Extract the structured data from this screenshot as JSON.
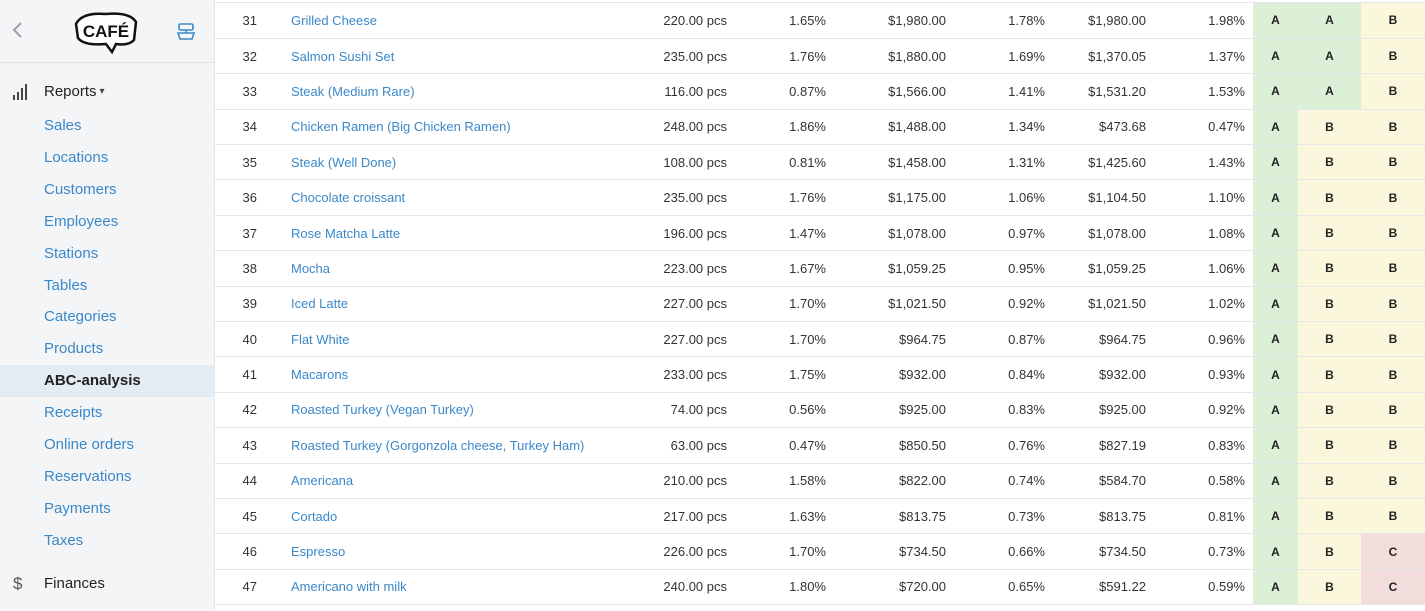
{
  "sidebar": {
    "back_icon": "chevron-left-icon",
    "logo_text": "CAFÉ",
    "pos_icon": "cash-register-icon",
    "reports_label": "Reports",
    "items": [
      "Sales",
      "Locations",
      "Customers",
      "Employees",
      "Stations",
      "Tables",
      "Categories",
      "Products",
      "ABC-analysis",
      "Receipts",
      "Online orders",
      "Reservations",
      "Payments",
      "Taxes"
    ],
    "active_item": "ABC-analysis",
    "finances_label": "Finances"
  },
  "colors": {
    "class_A": "#dcefd7",
    "class_B": "#fbf7dc",
    "class_C": "#f3dcdc",
    "link": "#3b88c9"
  },
  "rows": [
    {
      "num": "31",
      "name": "Grilled Cheese",
      "qty": "220.00 pcs",
      "qty_pct": "1.65%",
      "revenue": "$1,980.00",
      "revenue_pct": "1.78%",
      "profit": "$1,980.00",
      "profit_pct": "1.98%",
      "abc_qty": "A",
      "abc_revenue": "A",
      "abc_profit": "B"
    },
    {
      "num": "32",
      "name": "Salmon Sushi Set",
      "qty": "235.00 pcs",
      "qty_pct": "1.76%",
      "revenue": "$1,880.00",
      "revenue_pct": "1.69%",
      "profit": "$1,370.05",
      "profit_pct": "1.37%",
      "abc_qty": "A",
      "abc_revenue": "A",
      "abc_profit": "B"
    },
    {
      "num": "33",
      "name": "Steak (Medium Rare)",
      "qty": "116.00 pcs",
      "qty_pct": "0.87%",
      "revenue": "$1,566.00",
      "revenue_pct": "1.41%",
      "profit": "$1,531.20",
      "profit_pct": "1.53%",
      "abc_qty": "A",
      "abc_revenue": "A",
      "abc_profit": "B"
    },
    {
      "num": "34",
      "name": "Chicken Ramen (Big Chicken Ramen)",
      "qty": "248.00 pcs",
      "qty_pct": "1.86%",
      "revenue": "$1,488.00",
      "revenue_pct": "1.34%",
      "profit": "$473.68",
      "profit_pct": "0.47%",
      "abc_qty": "A",
      "abc_revenue": "B",
      "abc_profit": "B"
    },
    {
      "num": "35",
      "name": "Steak (Well Done)",
      "qty": "108.00 pcs",
      "qty_pct": "0.81%",
      "revenue": "$1,458.00",
      "revenue_pct": "1.31%",
      "profit": "$1,425.60",
      "profit_pct": "1.43%",
      "abc_qty": "A",
      "abc_revenue": "B",
      "abc_profit": "B"
    },
    {
      "num": "36",
      "name": "Chocolate croissant",
      "qty": "235.00 pcs",
      "qty_pct": "1.76%",
      "revenue": "$1,175.00",
      "revenue_pct": "1.06%",
      "profit": "$1,104.50",
      "profit_pct": "1.10%",
      "abc_qty": "A",
      "abc_revenue": "B",
      "abc_profit": "B"
    },
    {
      "num": "37",
      "name": "Rose Matcha Latte",
      "qty": "196.00 pcs",
      "qty_pct": "1.47%",
      "revenue": "$1,078.00",
      "revenue_pct": "0.97%",
      "profit": "$1,078.00",
      "profit_pct": "1.08%",
      "abc_qty": "A",
      "abc_revenue": "B",
      "abc_profit": "B"
    },
    {
      "num": "38",
      "name": "Mocha",
      "qty": "223.00 pcs",
      "qty_pct": "1.67%",
      "revenue": "$1,059.25",
      "revenue_pct": "0.95%",
      "profit": "$1,059.25",
      "profit_pct": "1.06%",
      "abc_qty": "A",
      "abc_revenue": "B",
      "abc_profit": "B"
    },
    {
      "num": "39",
      "name": "Iced Latte",
      "qty": "227.00 pcs",
      "qty_pct": "1.70%",
      "revenue": "$1,021.50",
      "revenue_pct": "0.92%",
      "profit": "$1,021.50",
      "profit_pct": "1.02%",
      "abc_qty": "A",
      "abc_revenue": "B",
      "abc_profit": "B"
    },
    {
      "num": "40",
      "name": "Flat White",
      "qty": "227.00 pcs",
      "qty_pct": "1.70%",
      "revenue": "$964.75",
      "revenue_pct": "0.87%",
      "profit": "$964.75",
      "profit_pct": "0.96%",
      "abc_qty": "A",
      "abc_revenue": "B",
      "abc_profit": "B"
    },
    {
      "num": "41",
      "name": "Macarons",
      "qty": "233.00 pcs",
      "qty_pct": "1.75%",
      "revenue": "$932.00",
      "revenue_pct": "0.84%",
      "profit": "$932.00",
      "profit_pct": "0.93%",
      "abc_qty": "A",
      "abc_revenue": "B",
      "abc_profit": "B"
    },
    {
      "num": "42",
      "name": "Roasted Turkey (Vegan Turkey)",
      "qty": "74.00 pcs",
      "qty_pct": "0.56%",
      "revenue": "$925.00",
      "revenue_pct": "0.83%",
      "profit": "$925.00",
      "profit_pct": "0.92%",
      "abc_qty": "A",
      "abc_revenue": "B",
      "abc_profit": "B"
    },
    {
      "num": "43",
      "name": "Roasted Turkey (Gorgonzola cheese, Turkey Ham)",
      "qty": "63.00 pcs",
      "qty_pct": "0.47%",
      "revenue": "$850.50",
      "revenue_pct": "0.76%",
      "profit": "$827.19",
      "profit_pct": "0.83%",
      "abc_qty": "A",
      "abc_revenue": "B",
      "abc_profit": "B"
    },
    {
      "num": "44",
      "name": "Americana",
      "qty": "210.00 pcs",
      "qty_pct": "1.58%",
      "revenue": "$822.00",
      "revenue_pct": "0.74%",
      "profit": "$584.70",
      "profit_pct": "0.58%",
      "abc_qty": "A",
      "abc_revenue": "B",
      "abc_profit": "B"
    },
    {
      "num": "45",
      "name": "Cortado",
      "qty": "217.00 pcs",
      "qty_pct": "1.63%",
      "revenue": "$813.75",
      "revenue_pct": "0.73%",
      "profit": "$813.75",
      "profit_pct": "0.81%",
      "abc_qty": "A",
      "abc_revenue": "B",
      "abc_profit": "B"
    },
    {
      "num": "46",
      "name": "Espresso",
      "qty": "226.00 pcs",
      "qty_pct": "1.70%",
      "revenue": "$734.50",
      "revenue_pct": "0.66%",
      "profit": "$734.50",
      "profit_pct": "0.73%",
      "abc_qty": "A",
      "abc_revenue": "B",
      "abc_profit": "C"
    },
    {
      "num": "47",
      "name": "Americano with milk",
      "qty": "240.00 pcs",
      "qty_pct": "1.80%",
      "revenue": "$720.00",
      "revenue_pct": "0.65%",
      "profit": "$591.22",
      "profit_pct": "0.59%",
      "abc_qty": "A",
      "abc_revenue": "B",
      "abc_profit": "C"
    }
  ]
}
